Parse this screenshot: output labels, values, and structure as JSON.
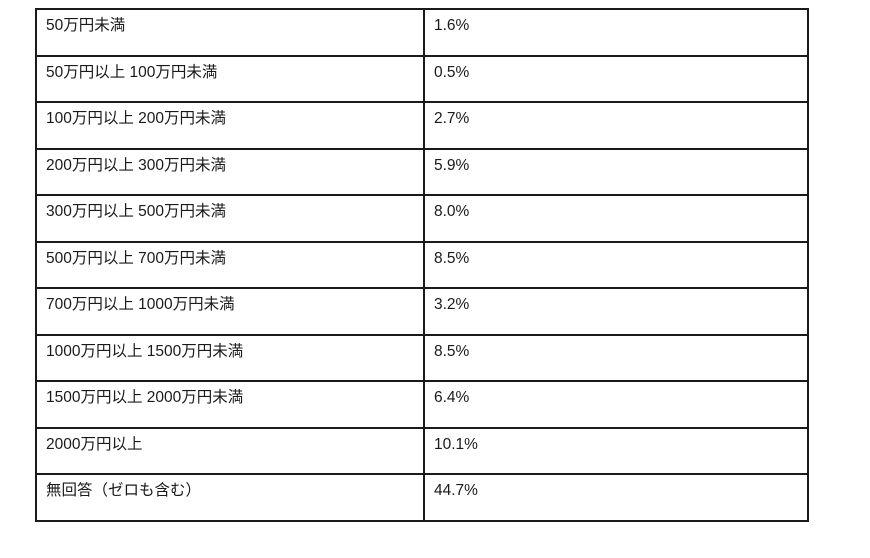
{
  "colors": {
    "background": "#ffffff",
    "border": "#1a1a1a",
    "text": "#1a1a1a"
  },
  "table": {
    "rows": [
      {
        "label": "50万円未満",
        "value": "1.6%"
      },
      {
        "label": "50万円以上 100万円未満",
        "value": "0.5%"
      },
      {
        "label": "100万円以上 200万円未満",
        "value": "2.7%"
      },
      {
        "label": "200万円以上 300万円未満",
        "value": "5.9%"
      },
      {
        "label": "300万円以上 500万円未満",
        "value": "8.0%"
      },
      {
        "label": "500万円以上 700万円未満",
        "value": "8.5%"
      },
      {
        "label": "700万円以上 1000万円未満",
        "value": "3.2%"
      },
      {
        "label": "1000万円以上 1500万円未満",
        "value": "8.5%"
      },
      {
        "label": "1500万円以上 2000万円未満",
        "value": "6.4%"
      },
      {
        "label": "2000万円以上",
        "value": "10.1%"
      },
      {
        "label": "無回答（ゼロも含む）",
        "value": "44.7%"
      }
    ]
  },
  "chart_data": {
    "type": "table",
    "categories": [
      "50万円未満",
      "50万円以上 100万円未満",
      "100万円以上 200万円未満",
      "200万円以上 300万円未満",
      "300万円以上 500万円未満",
      "500万円以上 700万円未満",
      "700万円以上 1000万円未満",
      "1000万円以上 1500万円未満",
      "1500万円以上 2000万円未満",
      "2000万円以上",
      "無回答（ゼロも含む）"
    ],
    "values": [
      1.6,
      0.5,
      2.7,
      5.9,
      8.0,
      8.5,
      3.2,
      8.5,
      6.4,
      10.1,
      44.7
    ],
    "unit": "%",
    "grid": "full-borders",
    "legend": "none"
  }
}
